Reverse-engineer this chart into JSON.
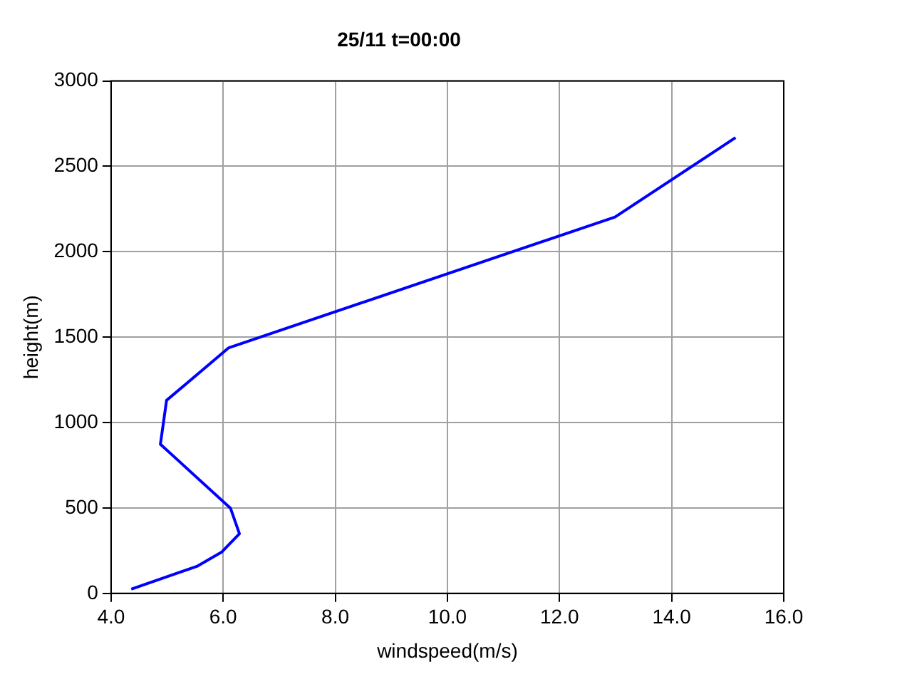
{
  "chart_data": {
    "type": "line",
    "title": "25/11 t=00:00",
    "xlabel": "windspeed(m/s)",
    "ylabel": "height(m)",
    "x": [
      4.36,
      5.53,
      5.97,
      6.29,
      6.13,
      4.88,
      4.99,
      6.1,
      12.99,
      15.14
    ],
    "series": [
      {
        "color": "#0000ff",
        "values": [
          25,
          158,
          241,
          349,
          499,
          873,
          1130,
          1438,
          2203,
          2668
        ]
      }
    ],
    "xlim": [
      4,
      16
    ],
    "xticks": [
      {
        "value": 4,
        "label": "4.0"
      },
      {
        "value": 6,
        "label": "6.0"
      },
      {
        "value": 8,
        "label": "8.0"
      },
      {
        "value": 10,
        "label": "10.0"
      },
      {
        "value": 12,
        "label": "12.0"
      },
      {
        "value": 14,
        "label": "14.0"
      },
      {
        "value": 16,
        "label": "16.0"
      }
    ],
    "ylim": [
      0,
      3000
    ],
    "yticks": [
      0,
      500,
      1000,
      1500,
      2000,
      2500,
      3000
    ],
    "grid": true,
    "legend": false,
    "marker": "none",
    "line_style": "solid"
  }
}
